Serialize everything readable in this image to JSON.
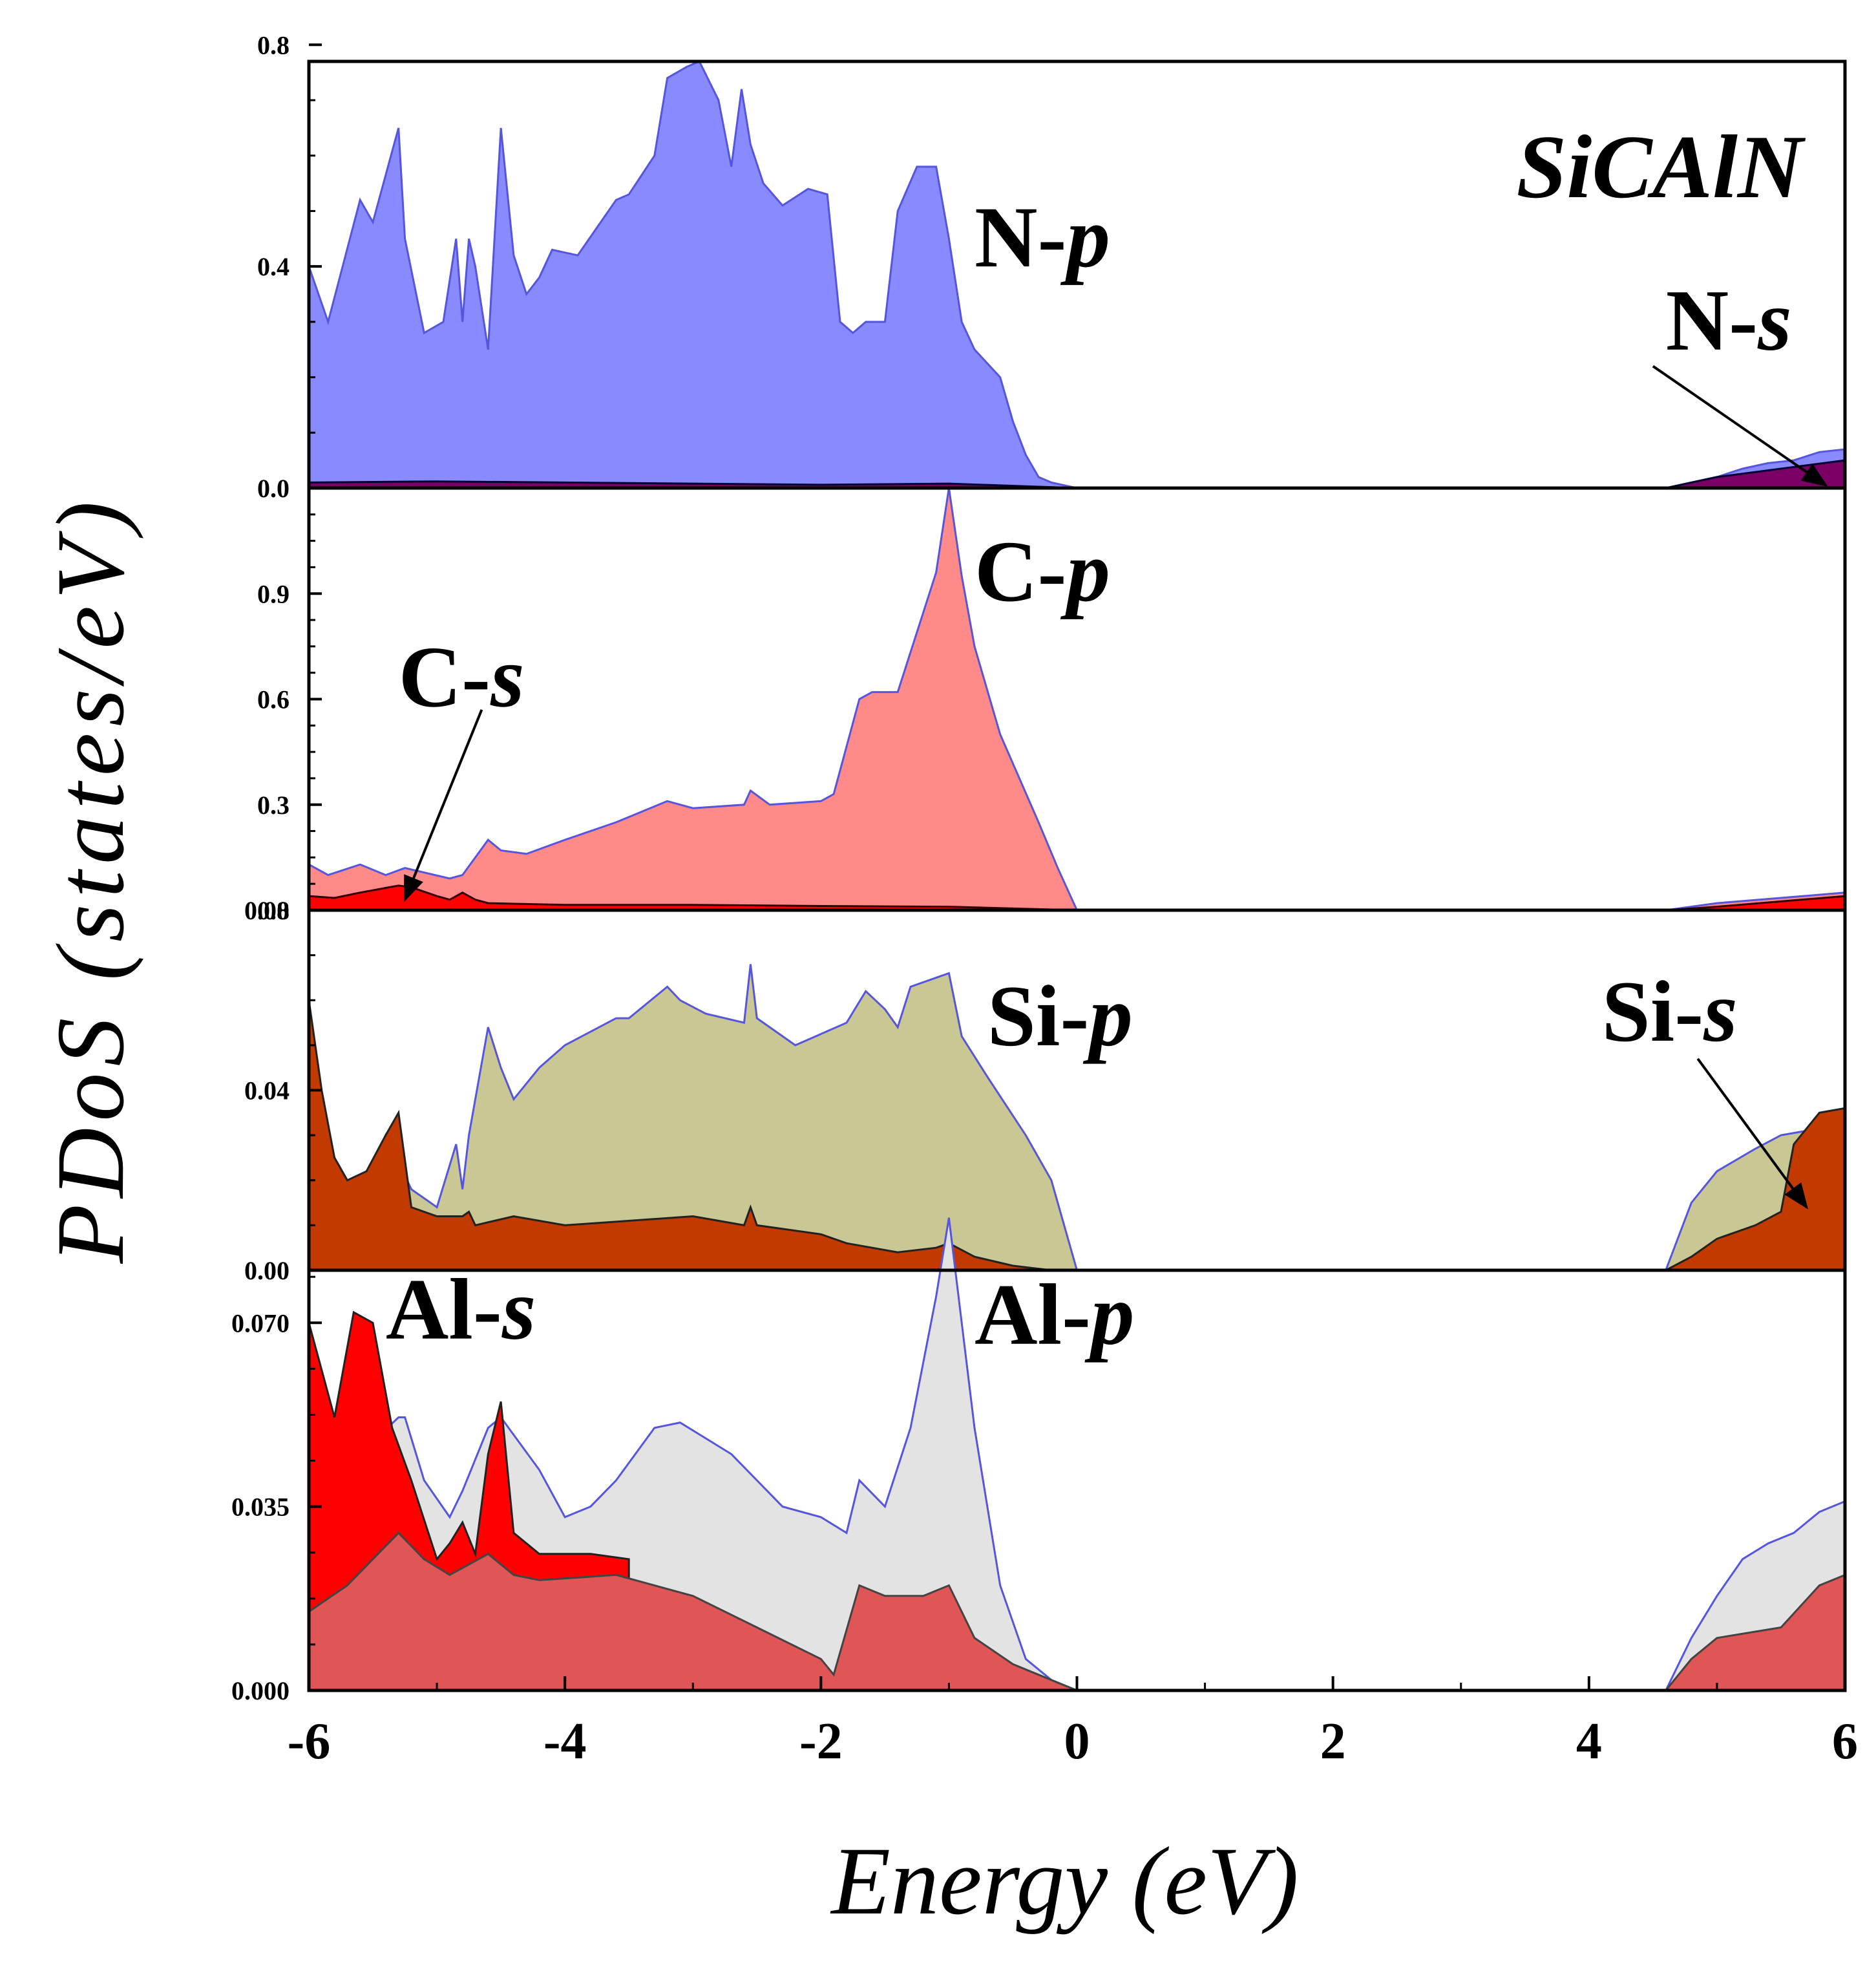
{
  "chart_data": {
    "type": "area",
    "title": "SiCAlN",
    "xlabel": "Energy (eV)",
    "ylabel": "PDoS (states/eV)",
    "xlim": [
      -6,
      6
    ],
    "xticks": [
      -6,
      -4,
      -2,
      0,
      2,
      4,
      6
    ],
    "xtick_labels": [
      "-6",
      "-4",
      "-2",
      "0",
      "2",
      "4",
      "6"
    ],
    "panels": [
      {
        "id": "N",
        "ylim": [
          0,
          0.77
        ],
        "yticks": [
          0,
          0.4,
          0.8
        ],
        "ytick_labels": [
          "0.0",
          "0.4",
          "0.8"
        ],
        "series": [
          {
            "name": "N-p",
            "color": "#8a8aff",
            "edge": "#5555dd",
            "x": [
              -6.0,
              -5.85,
              -5.6,
              -5.5,
              -5.3,
              -5.25,
              -5.1,
              -4.95,
              -4.85,
              -4.8,
              -4.75,
              -4.7,
              -4.6,
              -4.5,
              -4.4,
              -4.3,
              -4.2,
              -4.1,
              -3.9,
              -3.75,
              -3.6,
              -3.5,
              -3.3,
              -3.2,
              -3.05,
              -2.95,
              -2.8,
              -2.7,
              -2.62,
              -2.55,
              -2.45,
              -2.3,
              -2.1,
              -1.95,
              -1.85,
              -1.75,
              -1.65,
              -1.5,
              -1.4,
              -1.25,
              -1.1,
              -1.0,
              -0.9,
              -0.8,
              -0.6,
              -0.5,
              -0.4,
              -0.3,
              -0.2,
              -0.1,
              0.0,
              0.2,
              4.6,
              4.8,
              5.0,
              5.2,
              5.4,
              5.6,
              5.8,
              6.0
            ],
            "y": [
              0.4,
              0.3,
              0.52,
              0.48,
              0.65,
              0.45,
              0.28,
              0.3,
              0.45,
              0.3,
              0.45,
              0.4,
              0.25,
              0.65,
              0.42,
              0.35,
              0.38,
              0.43,
              0.42,
              0.47,
              0.52,
              0.53,
              0.6,
              0.74,
              0.76,
              0.77,
              0.7,
              0.58,
              0.72,
              0.62,
              0.55,
              0.51,
              0.54,
              0.53,
              0.3,
              0.28,
              0.3,
              0.3,
              0.5,
              0.58,
              0.58,
              0.45,
              0.3,
              0.25,
              0.2,
              0.12,
              0.06,
              0.02,
              0.01,
              0.005,
              0.0,
              0.0,
              0.0,
              0.01,
              0.02,
              0.035,
              0.045,
              0.05,
              0.065,
              0.07
            ]
          },
          {
            "name": "N-s",
            "color": "#7a0066",
            "edge": "#000033",
            "x": [
              -6.0,
              -5.0,
              -4.0,
              -3.0,
              -2.0,
              -1.0,
              0.0,
              4.6,
              5.0,
              5.5,
              6.0
            ],
            "y": [
              0.01,
              0.012,
              0.01,
              0.008,
              0.006,
              0.008,
              0.0,
              0.0,
              0.02,
              0.035,
              0.05
            ]
          }
        ],
        "labels": [
          {
            "base": "N-",
            "orb": "p",
            "x": -0.8,
            "y": 0.4
          },
          {
            "base": "N-",
            "orb": "s",
            "x": 4.6,
            "y": 0.25
          }
        ]
      },
      {
        "id": "C",
        "ylim": [
          0,
          1.2
        ],
        "yticks": [
          0,
          0.3,
          0.6,
          0.9
        ],
        "ytick_labels": [
          "0.0",
          "0.3",
          "0.6",
          "0.9"
        ],
        "series": [
          {
            "name": "C-p",
            "color": "#ff8a8a",
            "edge": "#5555dd",
            "x": [
              -6.0,
              -5.85,
              -5.6,
              -5.4,
              -5.25,
              -4.9,
              -4.8,
              -4.6,
              -4.5,
              -4.3,
              -4.0,
              -3.6,
              -3.2,
              -3.0,
              -2.6,
              -2.55,
              -2.4,
              -2.0,
              -1.9,
              -1.7,
              -1.6,
              -1.4,
              -1.1,
              -1.0,
              -0.9,
              -0.8,
              -0.6,
              -0.3,
              -0.15,
              -0.05,
              0.0,
              0.2,
              4.6,
              5.0,
              5.5,
              6.0
            ],
            "y": [
              0.13,
              0.1,
              0.13,
              0.1,
              0.12,
              0.09,
              0.1,
              0.2,
              0.17,
              0.16,
              0.2,
              0.25,
              0.31,
              0.29,
              0.3,
              0.34,
              0.3,
              0.31,
              0.33,
              0.6,
              0.62,
              0.62,
              0.96,
              1.2,
              0.95,
              0.75,
              0.5,
              0.25,
              0.12,
              0.04,
              0.0,
              0.0,
              0.0,
              0.02,
              0.035,
              0.05
            ]
          },
          {
            "name": "C-s",
            "color": "#ff0000",
            "edge": "#330000",
            "x": [
              -6.0,
              -5.8,
              -5.6,
              -5.3,
              -5.2,
              -5.0,
              -4.9,
              -4.8,
              -4.7,
              -4.6,
              -4.0,
              -3.0,
              -2.0,
              -1.0,
              0.0,
              4.6,
              5.0,
              5.5,
              6.0
            ],
            "y": [
              0.04,
              0.035,
              0.05,
              0.07,
              0.065,
              0.04,
              0.03,
              0.05,
              0.03,
              0.02,
              0.015,
              0.015,
              0.012,
              0.01,
              0.0,
              0.0,
              0.01,
              0.025,
              0.04
            ]
          }
        ],
        "labels": [
          {
            "base": "C-",
            "orb": "p",
            "x": -0.8,
            "y": 0.88
          },
          {
            "base": "C-",
            "orb": "s",
            "x": -5.3,
            "y": 0.58
          }
        ]
      },
      {
        "id": "Si",
        "ylim": [
          0,
          0.08
        ],
        "yticks": [
          0,
          0.04,
          0.08
        ],
        "ytick_labels": [
          "0.00",
          "0.04",
          "0.08"
        ],
        "series": [
          {
            "name": "Si-p",
            "color": "#c9c794",
            "edge": "#5555dd",
            "x": [
              -6.0,
              -5.9,
              -5.7,
              -5.55,
              -5.4,
              -5.2,
              -5.0,
              -4.85,
              -4.8,
              -4.75,
              -4.6,
              -4.5,
              -4.4,
              -4.2,
              -4.0,
              -3.6,
              -3.5,
              -3.2,
              -3.1,
              -2.9,
              -2.6,
              -2.55,
              -2.5,
              -2.2,
              -1.8,
              -1.65,
              -1.5,
              -1.4,
              -1.3,
              -1.1,
              -1.0,
              -0.9,
              -0.7,
              -0.4,
              -0.2,
              -0.05,
              0.0,
              0.2,
              4.6,
              4.8,
              5.0,
              5.3,
              5.5,
              5.7,
              5.85,
              6.0
            ],
            "y": [
              0.055,
              0.03,
              0.02,
              0.02,
              0.03,
              0.018,
              0.014,
              0.028,
              0.018,
              0.03,
              0.054,
              0.045,
              0.038,
              0.045,
              0.05,
              0.056,
              0.056,
              0.063,
              0.06,
              0.057,
              0.055,
              0.068,
              0.056,
              0.05,
              0.055,
              0.062,
              0.058,
              0.054,
              0.063,
              0.065,
              0.066,
              0.052,
              0.043,
              0.03,
              0.02,
              0.005,
              0.0,
              0.0,
              0.0,
              0.015,
              0.022,
              0.027,
              0.03,
              0.031,
              0.033,
              0.034
            ]
          },
          {
            "name": "Si-s",
            "color": "#c23a00",
            "edge": "#222222",
            "x": [
              -6.0,
              -5.9,
              -5.8,
              -5.7,
              -5.55,
              -5.4,
              -5.3,
              -5.2,
              -5.0,
              -4.8,
              -4.75,
              -4.7,
              -4.4,
              -4.0,
              -3.0,
              -2.6,
              -2.55,
              -2.5,
              -2.0,
              -1.8,
              -1.4,
              -1.1,
              -1.0,
              -0.8,
              -0.5,
              -0.2,
              0.0,
              4.6,
              4.8,
              5.0,
              5.3,
              5.5,
              5.6,
              5.8,
              6.0
            ],
            "y": [
              0.06,
              0.04,
              0.025,
              0.02,
              0.022,
              0.03,
              0.035,
              0.014,
              0.012,
              0.012,
              0.013,
              0.01,
              0.012,
              0.01,
              0.012,
              0.01,
              0.014,
              0.01,
              0.008,
              0.006,
              0.004,
              0.005,
              0.006,
              0.003,
              0.001,
              0.0,
              0.0,
              0.0,
              0.003,
              0.007,
              0.01,
              0.013,
              0.028,
              0.035,
              0.036
            ]
          }
        ],
        "labels": [
          {
            "base": "Si-",
            "orb": "p",
            "x": -0.7,
            "y": 0.05
          },
          {
            "base": "Si-",
            "orb": "s",
            "x": 4.1,
            "y": 0.051
          }
        ]
      },
      {
        "id": "Al",
        "ylim": [
          0,
          0.08
        ],
        "yticks": [
          0,
          0.035,
          0.07
        ],
        "ytick_labels": [
          "0.000",
          "0.035",
          "0.070"
        ],
        "series": [
          {
            "name": "Al-p",
            "color": "#e3e3e3",
            "edge": "#5555dd",
            "x": [
              -6.0,
              -5.6,
              -5.3,
              -5.25,
              -5.1,
              -4.9,
              -4.8,
              -4.6,
              -4.5,
              -4.2,
              -4.0,
              -3.8,
              -3.6,
              -3.3,
              -3.1,
              -2.9,
              -2.7,
              -2.5,
              -2.3,
              -2.0,
              -1.8,
              -1.7,
              -1.5,
              -1.3,
              -1.1,
              -1.0,
              -0.9,
              -0.8,
              -0.6,
              -0.4,
              -0.2,
              0.0,
              4.6,
              4.8,
              5.0,
              5.2,
              5.4,
              5.6,
              5.8,
              6.0
            ],
            "y": [
              0.035,
              0.045,
              0.052,
              0.052,
              0.04,
              0.033,
              0.038,
              0.05,
              0.052,
              0.042,
              0.033,
              0.035,
              0.04,
              0.05,
              0.051,
              0.048,
              0.045,
              0.04,
              0.035,
              0.033,
              0.03,
              0.04,
              0.035,
              0.05,
              0.075,
              0.09,
              0.07,
              0.05,
              0.02,
              0.006,
              0.002,
              0.0,
              0.0,
              0.01,
              0.018,
              0.025,
              0.028,
              0.03,
              0.034,
              0.036
            ]
          },
          {
            "name": "Al-s",
            "color": "#ff0000",
            "edge": "#222222",
            "x": [
              -6.0,
              -5.8,
              -5.65,
              -5.5,
              -5.35,
              -5.2,
              -5.0,
              -4.9,
              -4.8,
              -4.7,
              -4.6,
              -4.5,
              -4.4,
              -4.2,
              -4.0,
              -3.8,
              -3.5
            ],
            "y": [
              0.07,
              0.052,
              0.072,
              0.07,
              0.05,
              0.04,
              0.025,
              0.028,
              0.032,
              0.026,
              0.045,
              0.055,
              0.03,
              0.026,
              0.026,
              0.026,
              0.025
            ]
          },
          {
            "name": "Al-s",
            "color": "#e05555",
            "edge": "#444444",
            "x": [
              -6.0,
              -5.7,
              -5.5,
              -5.3,
              -5.1,
              -4.9,
              -4.6,
              -4.4,
              -4.2,
              -3.6,
              -3.0,
              -2.5,
              -2.0,
              -1.9,
              -1.7,
              -1.5,
              -1.2,
              -1.0,
              -0.8,
              -0.5,
              -0.2,
              0.0,
              4.6,
              4.8,
              5.0,
              5.5,
              5.8,
              6.0
            ],
            "y": [
              0.015,
              0.02,
              0.025,
              0.03,
              0.025,
              0.022,
              0.026,
              0.022,
              0.021,
              0.022,
              0.018,
              0.012,
              0.006,
              0.003,
              0.02,
              0.018,
              0.018,
              0.02,
              0.01,
              0.005,
              0.002,
              0.0,
              0.0,
              0.006,
              0.01,
              0.012,
              0.02,
              0.022
            ]
          }
        ],
        "labels": [
          {
            "base": "Al-",
            "orb": "s",
            "x": -5.4,
            "y": 0.067
          },
          {
            "base": "Al-",
            "orb": "p",
            "x": -0.8,
            "y": 0.066
          }
        ]
      }
    ],
    "arrows": [
      {
        "panel": 0,
        "from_x": 4.5,
        "from_y": 0.22,
        "to_x": 5.85,
        "to_y": 0.005
      },
      {
        "panel": 1,
        "from_x": -4.65,
        "from_y": 0.57,
        "to_x": -5.25,
        "to_y": 0.03
      },
      {
        "panel": 2,
        "from_x": 4.85,
        "from_y": 0.047,
        "to_x": 5.7,
        "to_y": 0.014
      }
    ]
  }
}
